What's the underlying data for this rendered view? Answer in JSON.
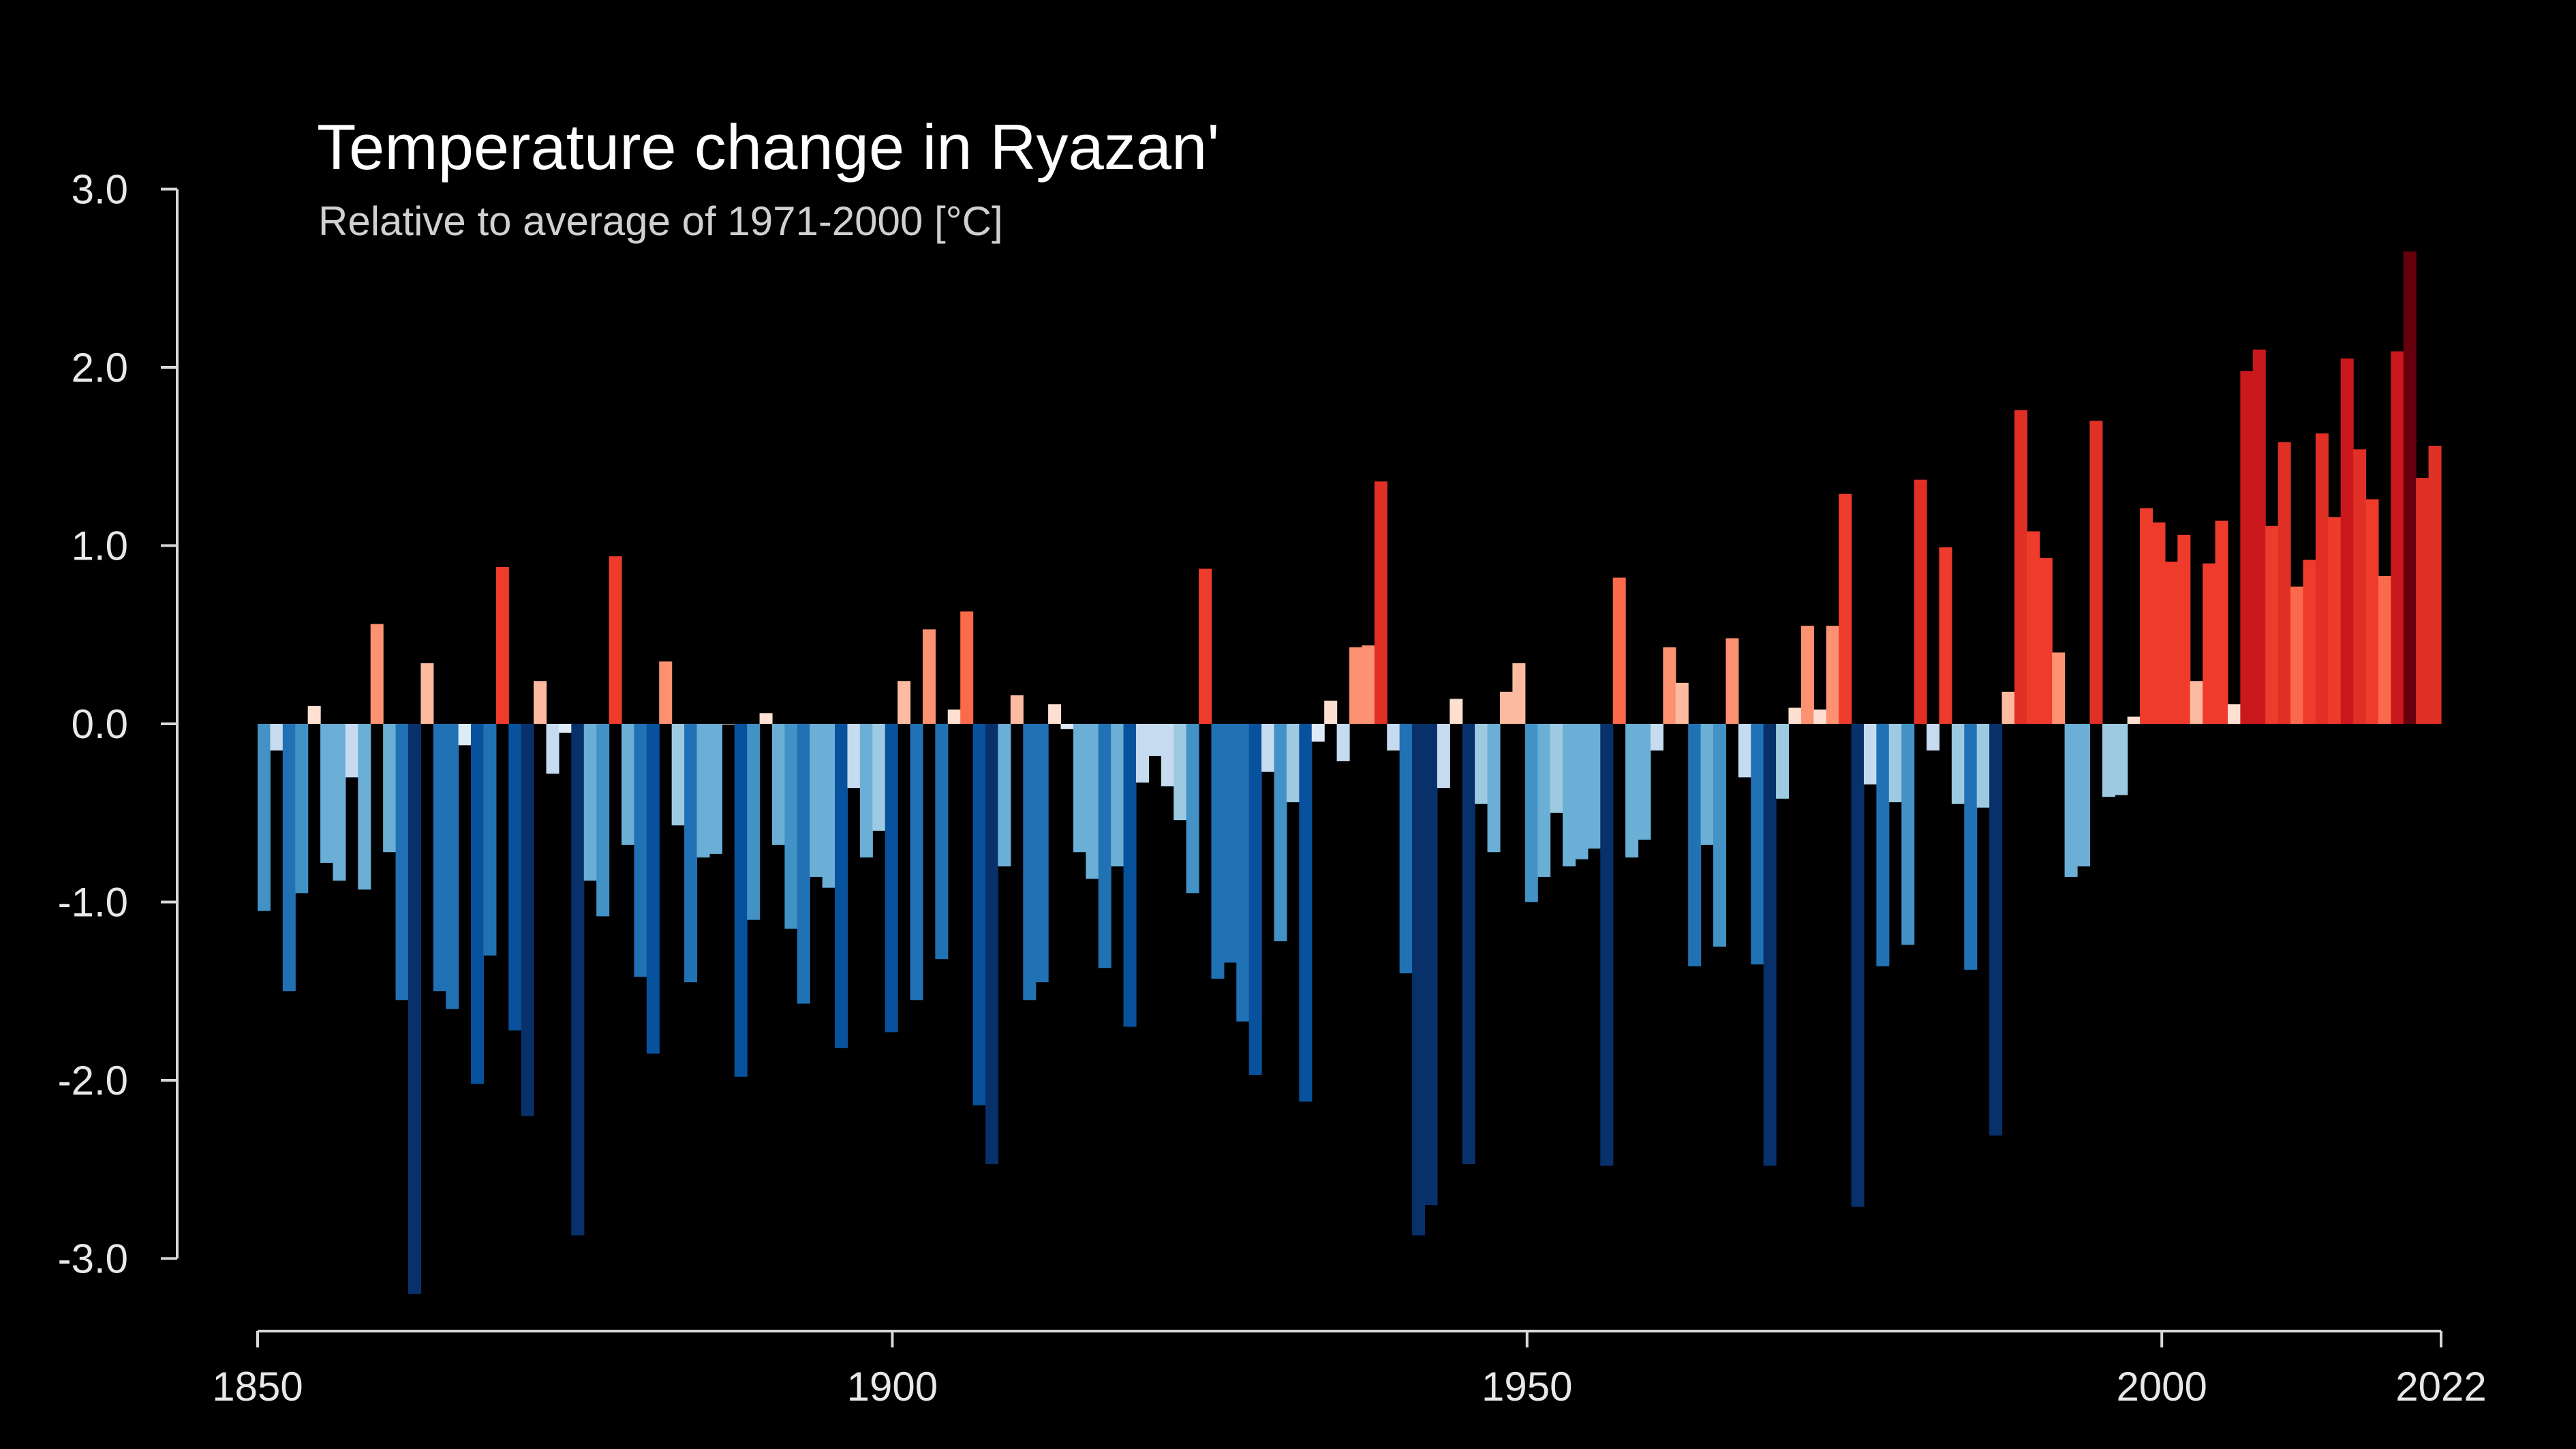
{
  "chart_data": {
    "type": "bar",
    "title": "Temperature change in Ryazan'",
    "subtitle": "Relative to average of 1971-2000  [°C]",
    "xlabel": "",
    "ylabel": "",
    "x_start": 1850,
    "x_end": 2022,
    "xlim": [
      1850,
      2022
    ],
    "ylim": [
      -3.2,
      3.0
    ],
    "y_ticks": [
      3.0,
      2.0,
      1.0,
      0.0,
      -1.0,
      -2.0,
      -3.0
    ],
    "y_tick_labels": [
      "3.0",
      "2.0",
      "1.0",
      "0.0",
      "-1.0",
      "-2.0",
      "-3.0"
    ],
    "x_ticks": [
      1850,
      1900,
      1950,
      2000,
      2022
    ],
    "x_tick_labels": [
      "1850",
      "1900",
      "1950",
      "2000",
      "2022"
    ],
    "grid": false,
    "legend": "none",
    "colors": {
      "background": "#000000",
      "warm": "#cb181d",
      "cold": "#08306b"
    },
    "values": [
      -1.05,
      -0.15,
      -1.5,
      -0.95,
      0.1,
      -0.78,
      -0.88,
      -0.3,
      -0.93,
      0.56,
      -0.72,
      -1.55,
      -3.2,
      0.34,
      -1.5,
      -1.6,
      -0.12,
      -2.02,
      -1.3,
      0.88,
      -1.72,
      -2.2,
      0.24,
      -0.28,
      -0.05,
      -2.87,
      -0.88,
      -1.08,
      0.94,
      -0.68,
      -1.42,
      -1.85,
      0.35,
      -0.57,
      -1.45,
      -0.75,
      -0.73,
      0.0,
      -1.98,
      -1.1,
      0.06,
      -0.68,
      -1.15,
      -1.57,
      -0.86,
      -0.92,
      -1.82,
      -0.36,
      -0.75,
      -0.6,
      -1.73,
      0.24,
      -1.55,
      0.53,
      -1.32,
      0.08,
      0.63,
      -2.14,
      -2.47,
      -0.8,
      0.16,
      -1.55,
      -1.45,
      0.11,
      -0.03,
      -0.72,
      -0.87,
      -1.37,
      -0.8,
      -1.7,
      -0.33,
      -0.18,
      -0.35,
      -0.54,
      -0.95,
      0.87,
      -1.43,
      -1.34,
      -1.67,
      -1.97,
      -0.27,
      -1.22,
      -0.44,
      -2.12,
      -0.1,
      0.13,
      -0.21,
      0.43,
      0.44,
      1.36,
      -0.15,
      -1.4,
      -2.87,
      -2.7,
      -0.36,
      0.14,
      -2.47,
      -0.45,
      -0.72,
      0.18,
      0.34,
      -1.0,
      -0.86,
      -0.5,
      -0.8,
      -0.76,
      -0.7,
      -2.48,
      0.82,
      -0.75,
      -0.65,
      -0.15,
      0.43,
      0.23,
      -1.36,
      -0.68,
      -1.25,
      0.48,
      -0.3,
      -1.35,
      -2.48,
      -0.42,
      0.09,
      0.55,
      0.08,
      0.55,
      1.29,
      -2.71,
      -0.34,
      -1.36,
      -0.44,
      -1.24,
      1.37,
      -0.15,
      0.99,
      -0.45,
      -1.38,
      -0.47,
      -2.31,
      0.18,
      1.76,
      1.08,
      0.93,
      0.4,
      -0.86,
      -0.8,
      1.7,
      -0.41,
      -0.4,
      0.04,
      1.21,
      1.13,
      0.91,
      1.06,
      0.24,
      0.9,
      1.14,
      0.11,
      1.98,
      2.1,
      1.11,
      1.58,
      0.77,
      0.92,
      1.63,
      1.16,
      2.05,
      1.54,
      1.26,
      0.83,
      2.09,
      2.65,
      1.38,
      1.56
    ]
  }
}
